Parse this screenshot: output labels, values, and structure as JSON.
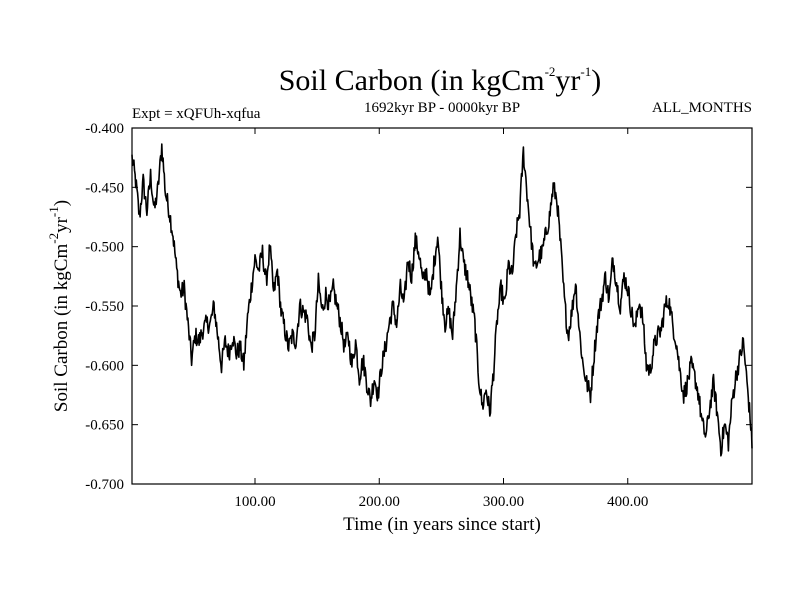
{
  "chart_data": {
    "type": "line",
    "title": "Soil Carbon (in kgCm",
    "title_sup1": "-2",
    "title_mid": "yr",
    "title_sup2": "-1",
    "title_end": ")",
    "subtitle_left": "Expt = xQFUh-xqfua",
    "subtitle_center": "1692kyr BP - 0000kyr BP",
    "subtitle_right": "ALL_MONTHS",
    "xlabel": "Time (in years since start)",
    "ylabel_parts": [
      "Soil Carbon (in kgCm",
      "-2",
      "yr",
      "-1",
      ")"
    ],
    "xlim": [
      1,
      500
    ],
    "ylim": [
      -0.7,
      -0.4
    ],
    "xticks": [
      100,
      200,
      300,
      400
    ],
    "xtick_labels": [
      "100.00",
      "200.00",
      "300.00",
      "400.00"
    ],
    "yticks": [
      -0.4,
      -0.45,
      -0.5,
      -0.55,
      -0.6,
      -0.65,
      -0.7
    ],
    "ytick_labels": [
      "-0.400",
      "-0.450",
      "-0.500",
      "-0.550",
      "-0.600",
      "-0.650",
      "-0.700"
    ],
    "series": [
      {
        "name": "soil_carbon",
        "color": "#000000",
        "keypoints": [
          [
            1,
            -0.425
          ],
          [
            4,
            -0.445
          ],
          [
            7,
            -0.475
          ],
          [
            10,
            -0.445
          ],
          [
            13,
            -0.47
          ],
          [
            16,
            -0.44
          ],
          [
            19,
            -0.47
          ],
          [
            22,
            -0.45
          ],
          [
            25,
            -0.415
          ],
          [
            28,
            -0.455
          ],
          [
            31,
            -0.47
          ],
          [
            34,
            -0.49
          ],
          [
            37,
            -0.52
          ],
          [
            40,
            -0.54
          ],
          [
            43,
            -0.535
          ],
          [
            46,
            -0.565
          ],
          [
            49,
            -0.595
          ],
          [
            52,
            -0.575
          ],
          [
            55,
            -0.58
          ],
          [
            58,
            -0.57
          ],
          [
            61,
            -0.565
          ],
          [
            64,
            -0.565
          ],
          [
            67,
            -0.55
          ],
          [
            70,
            -0.575
          ],
          [
            73,
            -0.6
          ],
          [
            76,
            -0.58
          ],
          [
            79,
            -0.59
          ],
          [
            82,
            -0.575
          ],
          [
            85,
            -0.59
          ],
          [
            88,
            -0.585
          ],
          [
            91,
            -0.6
          ],
          [
            94,
            -0.56
          ],
          [
            97,
            -0.535
          ],
          [
            100,
            -0.51
          ],
          [
            103,
            -0.52
          ],
          [
            106,
            -0.505
          ],
          [
            109,
            -0.53
          ],
          [
            112,
            -0.5
          ],
          [
            115,
            -0.54
          ],
          [
            118,
            -0.52
          ],
          [
            121,
            -0.555
          ],
          [
            124,
            -0.57
          ],
          [
            127,
            -0.585
          ],
          [
            130,
            -0.575
          ],
          [
            133,
            -0.58
          ],
          [
            136,
            -0.55
          ],
          [
            139,
            -0.555
          ],
          [
            142,
            -0.56
          ],
          [
            145,
            -0.585
          ],
          [
            148,
            -0.575
          ],
          [
            151,
            -0.53
          ],
          [
            154,
            -0.555
          ],
          [
            157,
            -0.54
          ],
          [
            160,
            -0.55
          ],
          [
            163,
            -0.535
          ],
          [
            166,
            -0.55
          ],
          [
            169,
            -0.565
          ],
          [
            172,
            -0.585
          ],
          [
            175,
            -0.575
          ],
          [
            178,
            -0.6
          ],
          [
            181,
            -0.58
          ],
          [
            184,
            -0.61
          ],
          [
            187,
            -0.595
          ],
          [
            190,
            -0.615
          ],
          [
            193,
            -0.63
          ],
          [
            196,
            -0.61
          ],
          [
            199,
            -0.625
          ],
          [
            202,
            -0.6
          ],
          [
            205,
            -0.585
          ],
          [
            208,
            -0.565
          ],
          [
            211,
            -0.55
          ],
          [
            214,
            -0.565
          ],
          [
            217,
            -0.535
          ],
          [
            220,
            -0.55
          ],
          [
            223,
            -0.51
          ],
          [
            226,
            -0.525
          ],
          [
            229,
            -0.495
          ],
          [
            232,
            -0.505
          ],
          [
            235,
            -0.53
          ],
          [
            238,
            -0.52
          ],
          [
            241,
            -0.545
          ],
          [
            244,
            -0.515
          ],
          [
            247,
            -0.49
          ],
          [
            250,
            -0.535
          ],
          [
            253,
            -0.565
          ],
          [
            256,
            -0.555
          ],
          [
            259,
            -0.575
          ],
          [
            262,
            -0.535
          ],
          [
            265,
            -0.49
          ],
          [
            268,
            -0.515
          ],
          [
            271,
            -0.525
          ],
          [
            274,
            -0.545
          ],
          [
            277,
            -0.565
          ],
          [
            280,
            -0.61
          ],
          [
            283,
            -0.635
          ],
          [
            286,
            -0.62
          ],
          [
            289,
            -0.64
          ],
          [
            292,
            -0.605
          ],
          [
            295,
            -0.56
          ],
          [
            298,
            -0.535
          ],
          [
            301,
            -0.55
          ],
          [
            304,
            -0.515
          ],
          [
            307,
            -0.525
          ],
          [
            310,
            -0.49
          ],
          [
            313,
            -0.47
          ],
          [
            316,
            -0.42
          ],
          [
            319,
            -0.455
          ],
          [
            322,
            -0.49
          ],
          [
            325,
            -0.52
          ],
          [
            328,
            -0.51
          ],
          [
            331,
            -0.505
          ],
          [
            334,
            -0.49
          ],
          [
            337,
            -0.475
          ],
          [
            340,
            -0.45
          ],
          [
            343,
            -0.46
          ],
          [
            346,
            -0.5
          ],
          [
            349,
            -0.545
          ],
          [
            352,
            -0.575
          ],
          [
            355,
            -0.555
          ],
          [
            358,
            -0.53
          ],
          [
            361,
            -0.57
          ],
          [
            364,
            -0.6
          ],
          [
            367,
            -0.615
          ],
          [
            370,
            -0.625
          ],
          [
            373,
            -0.59
          ],
          [
            376,
            -0.56
          ],
          [
            379,
            -0.545
          ],
          [
            382,
            -0.525
          ],
          [
            385,
            -0.545
          ],
          [
            388,
            -0.51
          ],
          [
            391,
            -0.53
          ],
          [
            394,
            -0.55
          ],
          [
            397,
            -0.525
          ],
          [
            400,
            -0.535
          ],
          [
            403,
            -0.555
          ],
          [
            406,
            -0.57
          ],
          [
            409,
            -0.545
          ],
          [
            412,
            -0.56
          ],
          [
            415,
            -0.6
          ],
          [
            418,
            -0.605
          ],
          [
            421,
            -0.585
          ],
          [
            424,
            -0.575
          ],
          [
            427,
            -0.57
          ],
          [
            430,
            -0.55
          ],
          [
            433,
            -0.545
          ],
          [
            436,
            -0.565
          ],
          [
            439,
            -0.58
          ],
          [
            442,
            -0.605
          ],
          [
            445,
            -0.625
          ],
          [
            448,
            -0.615
          ],
          [
            451,
            -0.6
          ],
          [
            454,
            -0.61
          ],
          [
            457,
            -0.625
          ],
          [
            460,
            -0.65
          ],
          [
            463,
            -0.66
          ],
          [
            466,
            -0.635
          ],
          [
            469,
            -0.615
          ],
          [
            472,
            -0.64
          ],
          [
            475,
            -0.67
          ],
          [
            478,
            -0.65
          ],
          [
            481,
            -0.665
          ],
          [
            484,
            -0.63
          ],
          [
            487,
            -0.61
          ],
          [
            490,
            -0.595
          ],
          [
            493,
            -0.58
          ],
          [
            496,
            -0.615
          ],
          [
            499,
            -0.65
          ],
          [
            500,
            -0.67
          ]
        ]
      }
    ]
  }
}
